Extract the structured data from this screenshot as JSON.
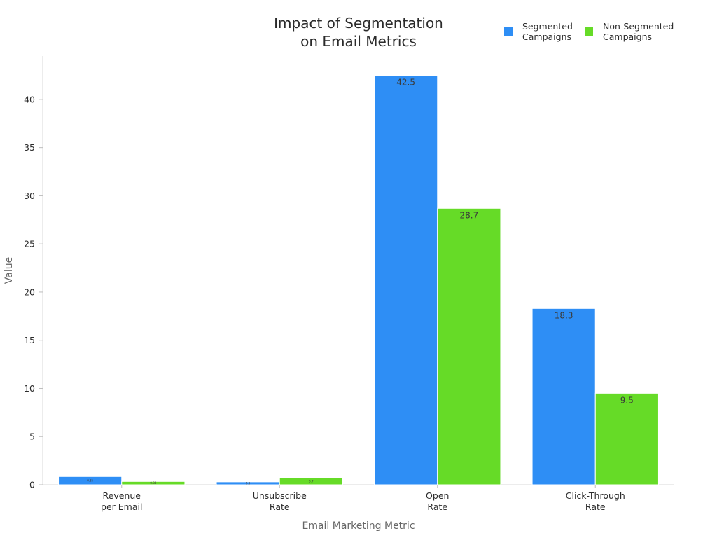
{
  "chart_data": {
    "type": "bar",
    "title_lines": [
      "Impact of Segmentation",
      "on Email Metrics"
    ],
    "xlabel": "Email Marketing Metric",
    "ylabel": "Value",
    "categories": [
      [
        "Revenue",
        "per Email"
      ],
      [
        "Unsubscribe",
        "Rate"
      ],
      [
        "Open",
        "Rate"
      ],
      [
        "Click-Through",
        "Rate"
      ]
    ],
    "series": [
      {
        "name_lines": [
          "Segmented",
          "Campaigns"
        ],
        "color": "#2e8ef5",
        "values": [
          0.85,
          0.3,
          42.5,
          18.3
        ],
        "labels": [
          "0.85",
          "0.3",
          "42.5",
          "18.3"
        ]
      },
      {
        "name_lines": [
          "Non-Segmented",
          "Campaigns"
        ],
        "color": "#66db27",
        "values": [
          0.34,
          0.7,
          28.7,
          9.5
        ],
        "labels": [
          "0.34",
          "0.7",
          "28.7",
          "9.5"
        ]
      }
    ],
    "ylim": [
      0,
      44.5
    ],
    "yticks": [
      0,
      5,
      10,
      15,
      20,
      25,
      30,
      35,
      40
    ],
    "grid": false,
    "legend_position": "top-right"
  }
}
